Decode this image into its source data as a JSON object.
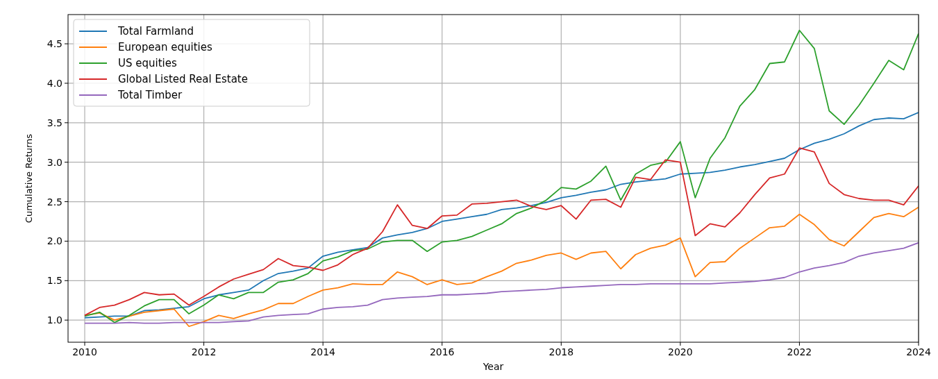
{
  "chart_data": {
    "type": "line",
    "xlabel": "Year",
    "ylabel": "Cumulative Returns",
    "x": [
      2010,
      2010.25,
      2010.5,
      2010.75,
      2011,
      2011.25,
      2011.5,
      2011.75,
      2012,
      2012.25,
      2012.5,
      2012.75,
      2013,
      2013.25,
      2013.5,
      2013.75,
      2014,
      2014.25,
      2014.5,
      2014.75,
      2015,
      2015.25,
      2015.5,
      2015.75,
      2016,
      2016.25,
      2016.5,
      2016.75,
      2017,
      2017.25,
      2017.5,
      2017.75,
      2018,
      2018.25,
      2018.5,
      2018.75,
      2019,
      2019.25,
      2019.5,
      2019.75,
      2020,
      2020.25,
      2020.5,
      2020.75,
      2021,
      2021.25,
      2021.5,
      2021.75,
      2022,
      2022.25,
      2022.5,
      2022.75,
      2023,
      2023.25,
      2023.5,
      2023.75,
      2024
    ],
    "series": [
      {
        "name": "Total Farmland",
        "color": "#1f77b4",
        "values": [
          1.03,
          1.04,
          1.05,
          1.05,
          1.12,
          1.13,
          1.15,
          1.17,
          1.27,
          1.32,
          1.35,
          1.38,
          1.5,
          1.59,
          1.62,
          1.66,
          1.81,
          1.86,
          1.89,
          1.92,
          2.04,
          2.08,
          2.11,
          2.16,
          2.25,
          2.28,
          2.31,
          2.34,
          2.4,
          2.42,
          2.45,
          2.49,
          2.55,
          2.58,
          2.62,
          2.65,
          2.72,
          2.75,
          2.77,
          2.79,
          2.85,
          2.86,
          2.87,
          2.9,
          2.94,
          2.97,
          3.01,
          3.05,
          3.16,
          3.24,
          3.29,
          3.36,
          3.46,
          3.54,
          3.56,
          3.55,
          3.63
        ]
      },
      {
        "name": "European equities",
        "color": "#ff7f0e",
        "values": [
          1.06,
          1.09,
          1.0,
          1.05,
          1.1,
          1.12,
          1.14,
          0.92,
          0.98,
          1.06,
          1.02,
          1.08,
          1.13,
          1.21,
          1.21,
          1.3,
          1.38,
          1.41,
          1.46,
          1.45,
          1.45,
          1.61,
          1.55,
          1.45,
          1.51,
          1.45,
          1.47,
          1.55,
          1.62,
          1.72,
          1.76,
          1.82,
          1.85,
          1.77,
          1.85,
          1.87,
          1.65,
          1.83,
          1.91,
          1.95,
          2.04,
          1.55,
          1.73,
          1.74,
          1.91,
          2.04,
          2.17,
          2.19,
          2.34,
          2.21,
          2.02,
          1.94,
          2.12,
          2.3,
          2.35,
          2.31,
          2.43
        ]
      },
      {
        "name": "US equities",
        "color": "#2ca02c",
        "values": [
          1.05,
          1.1,
          0.97,
          1.06,
          1.18,
          1.26,
          1.26,
          1.08,
          1.19,
          1.32,
          1.27,
          1.35,
          1.35,
          1.48,
          1.51,
          1.59,
          1.75,
          1.8,
          1.88,
          1.9,
          1.99,
          2.01,
          2.01,
          1.87,
          1.99,
          2.01,
          2.06,
          2.14,
          2.22,
          2.35,
          2.42,
          2.52,
          2.68,
          2.66,
          2.76,
          2.95,
          2.52,
          2.85,
          2.96,
          3.0,
          3.26,
          2.55,
          3.05,
          3.31,
          3.71,
          3.92,
          4.25,
          4.27,
          4.67,
          4.44,
          3.65,
          3.48,
          3.72,
          4.0,
          4.29,
          4.17,
          4.63
        ]
      },
      {
        "name": "Global Listed Real Estate",
        "color": "#d62728",
        "values": [
          1.06,
          1.16,
          1.19,
          1.26,
          1.35,
          1.32,
          1.33,
          1.19,
          1.3,
          1.42,
          1.52,
          1.58,
          1.64,
          1.78,
          1.69,
          1.67,
          1.63,
          1.7,
          1.83,
          1.91,
          2.12,
          2.46,
          2.2,
          2.16,
          2.32,
          2.33,
          2.47,
          2.48,
          2.5,
          2.52,
          2.44,
          2.4,
          2.45,
          2.28,
          2.52,
          2.53,
          2.43,
          2.81,
          2.78,
          3.03,
          3.0,
          2.07,
          2.22,
          2.18,
          2.36,
          2.59,
          2.8,
          2.85,
          3.18,
          3.13,
          2.73,
          2.59,
          2.54,
          2.52,
          2.52,
          2.46,
          2.7
        ]
      },
      {
        "name": "Total Timber",
        "color": "#9467bd",
        "values": [
          0.96,
          0.96,
          0.96,
          0.97,
          0.96,
          0.96,
          0.97,
          0.97,
          0.97,
          0.97,
          0.98,
          0.99,
          1.04,
          1.06,
          1.07,
          1.08,
          1.14,
          1.16,
          1.17,
          1.19,
          1.26,
          1.28,
          1.29,
          1.3,
          1.32,
          1.32,
          1.33,
          1.34,
          1.36,
          1.37,
          1.38,
          1.39,
          1.41,
          1.42,
          1.43,
          1.44,
          1.45,
          1.45,
          1.46,
          1.46,
          1.46,
          1.46,
          1.46,
          1.47,
          1.48,
          1.49,
          1.51,
          1.54,
          1.61,
          1.66,
          1.69,
          1.73,
          1.81,
          1.85,
          1.88,
          1.91,
          1.98
        ]
      }
    ],
    "xlim": [
      2009.72,
      2024
    ],
    "ylim": [
      0.72,
      4.87
    ],
    "xticks": [
      2010,
      2012,
      2014,
      2016,
      2018,
      2020,
      2022,
      2024
    ],
    "yticks": [
      {
        "value": 1,
        "label": "1.0"
      },
      {
        "value": 1.5,
        "label": "1.5"
      },
      {
        "value": 2,
        "label": "2.0"
      },
      {
        "value": 2.5,
        "label": "2.5"
      },
      {
        "value": 3,
        "label": "3.0"
      },
      {
        "value": 3.5,
        "label": "3.5"
      },
      {
        "value": 4,
        "label": "4.0"
      },
      {
        "value": 4.5,
        "label": "4.5"
      }
    ],
    "grid": true,
    "legend": "top left",
    "line_style": "solid",
    "marker": "none"
  }
}
